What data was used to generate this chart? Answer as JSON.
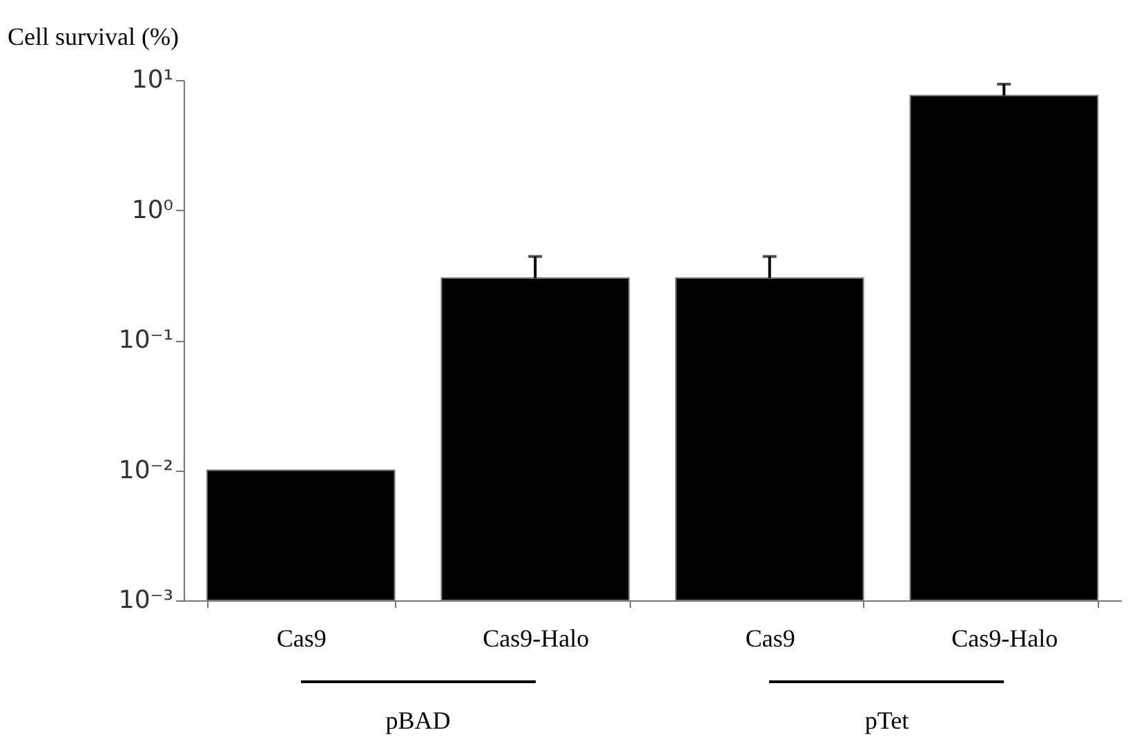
{
  "chart_data": {
    "type": "bar",
    "ylabel": "Cell survival (%)",
    "categories": [
      "Cas9",
      "Cas9-Halo",
      "Cas9",
      "Cas9-Halo"
    ],
    "values": [
      0.01,
      0.3,
      0.3,
      7.6
    ],
    "errors": [
      null,
      [
        0.3,
        0.44
      ],
      [
        0.3,
        0.44
      ],
      [
        7.6,
        9.3
      ]
    ],
    "color": "#000000",
    "log": true,
    "ylim": [
      0.001,
      10
    ],
    "yticks": [
      {
        "value": 0.001,
        "label": "10⁻³"
      },
      {
        "value": 0.01,
        "label": "10⁻²"
      },
      {
        "value": 0.1,
        "label": "10⁻¹"
      },
      {
        "value": 1,
        "label": "10⁰"
      },
      {
        "value": 10,
        "label": "10¹"
      }
    ],
    "annotations": [
      "pBAD",
      "pTet"
    ]
  }
}
